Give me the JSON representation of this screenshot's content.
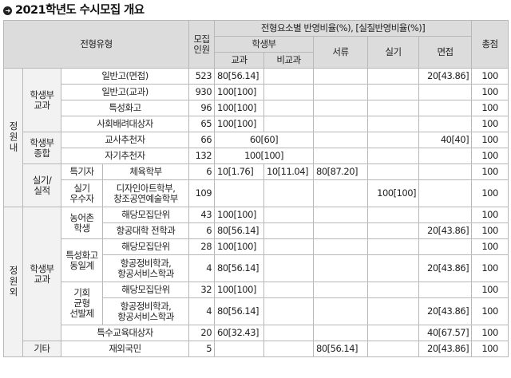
{
  "title": "2021학년도 수시모집 개요",
  "title_icon": "circle-arrow-icon",
  "header": {
    "type": "전형유형",
    "quota": "모집\n인원",
    "ratio_group": "전형요소별 반영비율(%), [실질반영비율(%)]",
    "student_record": "학생부",
    "subject": "교과",
    "non_subject": "비교과",
    "documents": "서류",
    "practical": "실기",
    "interview": "면접",
    "total": "총점"
  },
  "labels": {
    "inside": "정원내",
    "outside": "정원외",
    "hakgyo": "학생부\n교과",
    "hakjong": "학생부\n종합",
    "silgi": "실기/\n실적",
    "teukgi": "특기자",
    "silgi_best": "실기\n우수자",
    "nongeochon": "농어촌\n학생",
    "teukseong": "특성화고\n동일계",
    "gihoe": "기회\n균형\n선발제",
    "etc": "기타"
  },
  "rows": [
    {
      "name": "일반고(면접)",
      "quota": "523",
      "subject": "80[56.14]",
      "interview": "20[43.86]",
      "total": "100"
    },
    {
      "name": "일반고(교과)",
      "quota": "930",
      "subject": "100[100]",
      "total": "100"
    },
    {
      "name": "특성화고",
      "quota": "96",
      "subject": "100[100]",
      "total": "100"
    },
    {
      "name": "사회배려대상자",
      "quota": "65",
      "subject": "100[100]",
      "total": "100"
    },
    {
      "name": "교사추천자",
      "quota": "66",
      "student": "60[60]",
      "interview": "40[40]",
      "total": "100"
    },
    {
      "name": "자기추천자",
      "quota": "132",
      "student": "100[100]",
      "total": "100"
    },
    {
      "name": "체육학부",
      "quota": "6",
      "subject": "10[1.76]",
      "non_subject": "10[11.04]",
      "documents": "80[87.20]",
      "total": "100"
    },
    {
      "name": "디자인아트학부,\n창조공연예술학부",
      "quota": "109",
      "practical": "100[100]",
      "total": "100"
    },
    {
      "name": "해당모집단위",
      "quota": "43",
      "subject": "100[100]",
      "total": "100"
    },
    {
      "name": "항공대학 전학과",
      "quota": "6",
      "subject": "80[56.14]",
      "interview": "20[43.86]",
      "total": "100"
    },
    {
      "name": "해당모집단위",
      "quota": "28",
      "subject": "100[100]",
      "total": "100"
    },
    {
      "name": "항공정비학과,\n항공서비스학과",
      "quota": "4",
      "subject": "80[56.14]",
      "interview": "20[43.86]",
      "total": "100"
    },
    {
      "name": "해당모집단위",
      "quota": "32",
      "subject": "100[100]",
      "total": "100"
    },
    {
      "name": "항공정비학과,\n항공서비스학과",
      "quota": "4",
      "subject": "80[56.14]",
      "interview": "20[43.86]",
      "total": "100"
    },
    {
      "name": "특수교육대상자",
      "quota": "20",
      "subject": "60[32.43]",
      "interview": "40[67.57]",
      "total": "100"
    },
    {
      "name": "재외국민",
      "quota": "5",
      "documents": "80[56.14]",
      "interview": "20[43.86]",
      "total": "100"
    }
  ]
}
